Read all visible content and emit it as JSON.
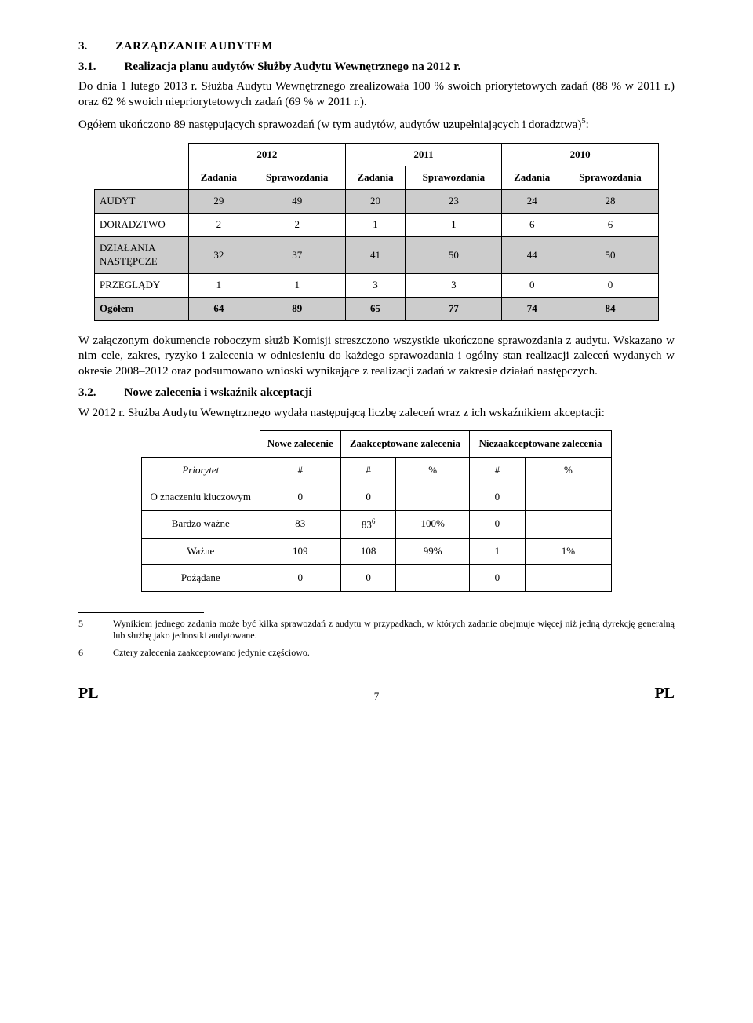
{
  "section3": {
    "num": "3.",
    "title": "ZARZĄDZANIE AUDYTEM"
  },
  "section31": {
    "num": "3.1.",
    "title": "Realizacja planu audytów Służby Audytu Wewnętrznego na 2012 r."
  },
  "para1": "Do dnia 1 lutego 2013 r. Służba Audytu Wewnętrznego zrealizowała 100 % swoich priorytetowych zadań (88 % w 2011 r.) oraz 62 % swoich niepriorytetowych zadań (69 % w 2011 r.).",
  "para2_pre": "Ogółem ukończono 89 następujących sprawozdań (w tym audytów, audytów uzupełniających i doradztwa)",
  "para2_sup": "5",
  "para2_post": ":",
  "table1": {
    "years": [
      "2012",
      "2011",
      "2010"
    ],
    "subheads": [
      "Zadania",
      "Sprawozdania",
      "Zadania",
      "Sprawozdania",
      "Zadania",
      "Sprawozdania"
    ],
    "rows": [
      {
        "label": "AUDYT",
        "cells": [
          "29",
          "49",
          "20",
          "23",
          "24",
          "28"
        ],
        "gray": true
      },
      {
        "label": "DORADZTWO",
        "cells": [
          "2",
          "2",
          "1",
          "1",
          "6",
          "6"
        ],
        "gray": false
      },
      {
        "label": "DZIAŁANIA NASTĘPCZE",
        "cells": [
          "32",
          "37",
          "41",
          "50",
          "44",
          "50"
        ],
        "gray": true
      },
      {
        "label": "PRZEGLĄDY",
        "cells": [
          "1",
          "1",
          "3",
          "3",
          "0",
          "0"
        ],
        "gray": false
      },
      {
        "label": "Ogółem",
        "cells": [
          "64",
          "89",
          "65",
          "77",
          "74",
          "84"
        ],
        "gray": true,
        "bold": true
      }
    ]
  },
  "para3": "W załączonym dokumencie roboczym służb Komisji streszczono wszystkie ukończone sprawozdania z audytu. Wskazano w nim cele, zakres, ryzyko i zalecenia w odniesieniu do każdego sprawozdania i ogólny stan realizacji zaleceń wydanych w okresie 2008–2012 oraz podsumowano wnioski wynikające z realizacji zadań w zakresie działań następczych.",
  "section32": {
    "num": "3.2.",
    "title": "Nowe zalecenia i wskaźnik akceptacji"
  },
  "para4": "W 2012 r. Służba Audytu Wewnętrznego wydała następującą liczbę zaleceń wraz z ich wskaźnikiem akceptacji:",
  "table2": {
    "head": [
      "Nowe zalecenie",
      "Zaakceptowane zalecenia",
      "Niezaakceptowane zalecenia"
    ],
    "priorytet_row": [
      "Priorytet",
      "#",
      "#",
      "%",
      "#",
      "%"
    ],
    "rows": [
      {
        "label": "O znaczeniu kluczowym",
        "cells": [
          "0",
          "0",
          "",
          "0",
          ""
        ]
      },
      {
        "label": "Bardzo ważne",
        "cells": [
          "83",
          "83",
          "100%",
          "0",
          ""
        ],
        "sup_in_col2": "6"
      },
      {
        "label": "Ważne",
        "cells": [
          "109",
          "108",
          "99%",
          "1",
          "1%"
        ]
      },
      {
        "label": "Pożądane",
        "cells": [
          "0",
          "0",
          "",
          "0",
          ""
        ]
      }
    ]
  },
  "footnote5": {
    "num": "5",
    "text": "Wynikiem jednego zadania może być kilka sprawozdań z audytu w przypadkach, w których zadanie obejmuje więcej niż jedną dyrekcję generalną lub służbę jako jednostki audytowane."
  },
  "footnote6": {
    "num": "6",
    "text": "Cztery zalecenia zaakceptowano jedynie częściowo."
  },
  "footer": {
    "left": "PL",
    "page": "7",
    "right": "PL"
  }
}
